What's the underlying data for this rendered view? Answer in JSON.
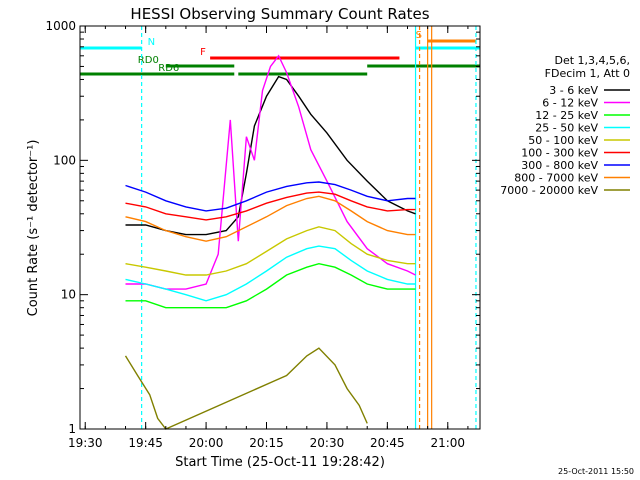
{
  "chart_data": {
    "type": "line",
    "title": "HESSI Observing Summary Count Rates",
    "xlabel": "Start Time (25-Oct-11 19:28:42)",
    "ylabel": "Count Rate (s⁻¹ detector⁻¹)",
    "y_scale": "log",
    "xlim": [
      "19:28:42",
      "21:08:00"
    ],
    "ylim": [
      1,
      1000
    ],
    "x_ticks": [
      "19:30",
      "19:45",
      "20:00",
      "20:15",
      "20:30",
      "20:45",
      "21:00"
    ],
    "y_ticks": [
      "1",
      "10",
      "100",
      "1000"
    ],
    "legend_header": [
      "Det 1,3,4,5,6,",
      "FDecim 1, Att 0"
    ],
    "series": [
      {
        "name": "3 - 6 keV",
        "color": "#000000",
        "points": [
          [
            "19:40",
            33
          ],
          [
            "19:45",
            33
          ],
          [
            "19:50",
            30
          ],
          [
            "19:55",
            28
          ],
          [
            "20:00",
            28
          ],
          [
            "20:05",
            30
          ],
          [
            "20:08",
            38
          ],
          [
            "20:10",
            80
          ],
          [
            "20:12",
            180
          ],
          [
            "20:15",
            300
          ],
          [
            "20:18",
            420
          ],
          [
            "20:20",
            400
          ],
          [
            "20:23",
            300
          ],
          [
            "20:26",
            220
          ],
          [
            "20:30",
            160
          ],
          [
            "20:35",
            100
          ],
          [
            "20:40",
            70
          ],
          [
            "20:45",
            50
          ],
          [
            "20:50",
            42
          ],
          [
            "20:52",
            40
          ]
        ]
      },
      {
        "name": "6 - 12 keV",
        "color": "#ff00ff",
        "points": [
          [
            "19:40",
            12
          ],
          [
            "19:45",
            12
          ],
          [
            "19:50",
            11
          ],
          [
            "19:55",
            11
          ],
          [
            "20:00",
            12
          ],
          [
            "20:03",
            20
          ],
          [
            "20:06",
            200
          ],
          [
            "20:08",
            25
          ],
          [
            "20:10",
            150
          ],
          [
            "20:12",
            100
          ],
          [
            "20:14",
            330
          ],
          [
            "20:16",
            500
          ],
          [
            "20:18",
            600
          ],
          [
            "20:20",
            450
          ],
          [
            "20:23",
            250
          ],
          [
            "20:26",
            120
          ],
          [
            "20:30",
            70
          ],
          [
            "20:35",
            35
          ],
          [
            "20:40",
            22
          ],
          [
            "20:45",
            17
          ],
          [
            "20:50",
            15
          ],
          [
            "20:52",
            14
          ]
        ]
      },
      {
        "name": "12 - 25 keV",
        "color": "#00ff00",
        "points": [
          [
            "19:40",
            9
          ],
          [
            "19:45",
            9
          ],
          [
            "19:50",
            8
          ],
          [
            "19:55",
            8
          ],
          [
            "20:00",
            8
          ],
          [
            "20:05",
            8
          ],
          [
            "20:10",
            9
          ],
          [
            "20:15",
            11
          ],
          [
            "20:20",
            14
          ],
          [
            "20:25",
            16
          ],
          [
            "20:28",
            17
          ],
          [
            "20:32",
            16
          ],
          [
            "20:36",
            14
          ],
          [
            "20:40",
            12
          ],
          [
            "20:45",
            11
          ],
          [
            "20:50",
            11
          ],
          [
            "20:52",
            11
          ]
        ]
      },
      {
        "name": "25 - 50 keV",
        "color": "#00ffff",
        "points": [
          [
            "19:40",
            13
          ],
          [
            "19:45",
            12
          ],
          [
            "19:50",
            11
          ],
          [
            "19:55",
            10
          ],
          [
            "20:00",
            9
          ],
          [
            "20:05",
            10
          ],
          [
            "20:10",
            12
          ],
          [
            "20:15",
            15
          ],
          [
            "20:20",
            19
          ],
          [
            "20:25",
            22
          ],
          [
            "20:28",
            23
          ],
          [
            "20:32",
            22
          ],
          [
            "20:36",
            18
          ],
          [
            "20:40",
            15
          ],
          [
            "20:45",
            13
          ],
          [
            "20:50",
            12
          ],
          [
            "20:52",
            12
          ]
        ]
      },
      {
        "name": "50 - 100 keV",
        "color": "#c8c800",
        "points": [
          [
            "19:40",
            17
          ],
          [
            "19:45",
            16
          ],
          [
            "19:50",
            15
          ],
          [
            "19:55",
            14
          ],
          [
            "20:00",
            14
          ],
          [
            "20:05",
            15
          ],
          [
            "20:10",
            17
          ],
          [
            "20:15",
            21
          ],
          [
            "20:20",
            26
          ],
          [
            "20:25",
            30
          ],
          [
            "20:28",
            32
          ],
          [
            "20:32",
            30
          ],
          [
            "20:36",
            24
          ],
          [
            "20:40",
            20
          ],
          [
            "20:45",
            18
          ],
          [
            "20:50",
            17
          ],
          [
            "20:52",
            17
          ]
        ]
      },
      {
        "name": "100 - 300 keV",
        "color": "#ff0000",
        "points": [
          [
            "19:40",
            48
          ],
          [
            "19:45",
            45
          ],
          [
            "19:50",
            40
          ],
          [
            "19:55",
            38
          ],
          [
            "20:00",
            36
          ],
          [
            "20:05",
            38
          ],
          [
            "20:10",
            42
          ],
          [
            "20:15",
            48
          ],
          [
            "20:20",
            53
          ],
          [
            "20:25",
            57
          ],
          [
            "20:28",
            58
          ],
          [
            "20:32",
            56
          ],
          [
            "20:36",
            50
          ],
          [
            "20:40",
            45
          ],
          [
            "20:45",
            42
          ],
          [
            "20:50",
            43
          ],
          [
            "20:52",
            43
          ]
        ]
      },
      {
        "name": "300 - 800 keV",
        "color": "#0000ff",
        "points": [
          [
            "19:40",
            65
          ],
          [
            "19:45",
            58
          ],
          [
            "19:50",
            50
          ],
          [
            "19:55",
            45
          ],
          [
            "20:00",
            42
          ],
          [
            "20:05",
            44
          ],
          [
            "20:10",
            50
          ],
          [
            "20:15",
            58
          ],
          [
            "20:20",
            64
          ],
          [
            "20:25",
            68
          ],
          [
            "20:28",
            69
          ],
          [
            "20:32",
            66
          ],
          [
            "20:36",
            60
          ],
          [
            "20:40",
            54
          ],
          [
            "20:45",
            50
          ],
          [
            "20:50",
            52
          ],
          [
            "20:52",
            52
          ]
        ]
      },
      {
        "name": "800 - 7000 keV",
        "color": "#ff8000",
        "points": [
          [
            "19:40",
            38
          ],
          [
            "19:45",
            35
          ],
          [
            "19:50",
            30
          ],
          [
            "19:55",
            27
          ],
          [
            "20:00",
            25
          ],
          [
            "20:05",
            27
          ],
          [
            "20:10",
            32
          ],
          [
            "20:15",
            38
          ],
          [
            "20:20",
            46
          ],
          [
            "20:25",
            52
          ],
          [
            "20:28",
            54
          ],
          [
            "20:32",
            50
          ],
          [
            "20:36",
            42
          ],
          [
            "20:40",
            35
          ],
          [
            "20:45",
            30
          ],
          [
            "20:50",
            28
          ],
          [
            "20:52",
            28
          ]
        ]
      },
      {
        "name": "7000 - 20000 keV",
        "color": "#808000",
        "points": [
          [
            "19:40",
            3.5
          ],
          [
            "19:43",
            2.5
          ],
          [
            "19:46",
            1.8
          ],
          [
            "19:48",
            1.2
          ],
          [
            "19:50",
            1.0
          ],
          [
            "20:20",
            2.5
          ],
          [
            "20:25",
            3.5
          ],
          [
            "20:28",
            4.0
          ],
          [
            "20:32",
            3.0
          ],
          [
            "20:35",
            2.0
          ],
          [
            "20:38",
            1.5
          ],
          [
            "20:40",
            1.1
          ]
        ]
      }
    ],
    "flag_bars": [
      {
        "label": "N",
        "color": "#00ffff",
        "segments": [
          [
            "19:28:42",
            "19:44"
          ]
        ]
      },
      {
        "label": "F",
        "color": "#ff0000",
        "segments": [
          [
            "20:01",
            "20:48"
          ]
        ]
      },
      {
        "label": "RD0",
        "color": "#008000",
        "segments": [
          [
            "19:50",
            "20:07"
          ],
          [
            "20:40",
            "21:08"
          ]
        ]
      },
      {
        "label": "RD6",
        "color": "#008000",
        "segments": [
          [
            "19:28:42",
            "20:07"
          ],
          [
            "20:08",
            "20:40"
          ]
        ]
      },
      {
        "label": "S",
        "color": "#ff8000",
        "segments": [
          [
            "20:55",
            "21:07"
          ]
        ]
      },
      {
        "label": "",
        "color": "#00ffff",
        "segments": [
          [
            "20:52",
            "21:08"
          ]
        ]
      }
    ],
    "vertical_markers": [
      {
        "time": "19:44",
        "color": "#00ffff",
        "style": "dashed"
      },
      {
        "time": "20:52",
        "color": "#00ffff",
        "style": "solid"
      },
      {
        "time": "20:53",
        "color": "#ff8000",
        "style": "dashed"
      },
      {
        "time": "20:55",
        "color": "#ff8000",
        "style": "solid"
      },
      {
        "time": "20:56",
        "color": "#ff8000",
        "style": "solid"
      },
      {
        "time": "21:07",
        "color": "#00ffff",
        "style": "dashed"
      }
    ],
    "grid": false,
    "legend_position": "right"
  },
  "footer": {
    "timestamp": "25-Oct-2011 15:50"
  }
}
